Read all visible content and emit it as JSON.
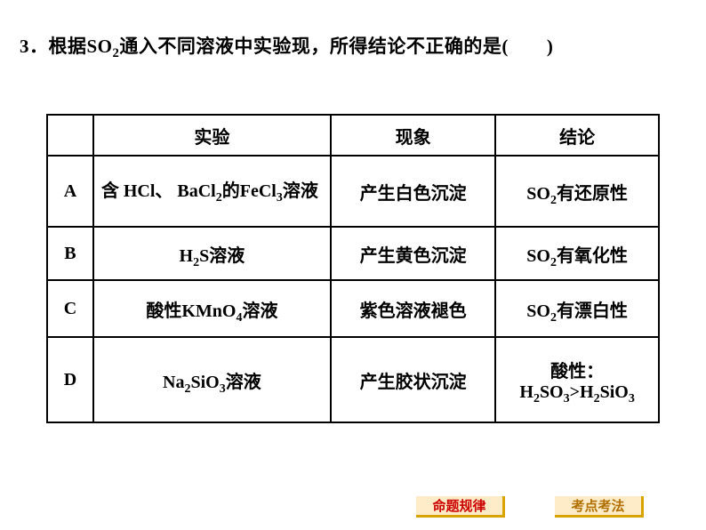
{
  "question": "3．根据SO₂通入不同溶液中实验现象，所得结论不正确的是(　　)",
  "table": {
    "header": {
      "label": "",
      "experiment": "实验",
      "phenomenon": "现象",
      "conclusion": "结论"
    },
    "rows": [
      {
        "label": "A",
        "experiment_html": "含 HCl、 BaCl<sub>2</sub>的FeCl<sub>3</sub>溶液",
        "phenomenon": "产生白色沉淀",
        "conclusion_html": "SO<sub>2</sub>有还原性",
        "height_class": "rA",
        "exp_align": "left-align"
      },
      {
        "label": "B",
        "experiment_html": "H<sub>2</sub>S溶液",
        "phenomenon": "产生黄色沉淀",
        "conclusion_html": "SO<sub>2</sub>有氧化性",
        "height_class": "rB",
        "exp_align": ""
      },
      {
        "label": "C",
        "experiment_html": "酸性KMnO<sub>4</sub>溶液",
        "phenomenon": "紫色溶液褪色",
        "conclusion_html": "SO<sub>2</sub>有漂白性",
        "height_class": "rC",
        "exp_align": ""
      },
      {
        "label": "D",
        "experiment_html": "Na<sub>2</sub>SiO<sub>3</sub>溶液",
        "phenomenon": "产生胶状沉淀",
        "conclusion_html": "酸性：<br>H<sub>2</sub>SO<sub>3</sub>&gt;H<sub>2</sub>SiO<sub>3</sub>",
        "height_class": "rD",
        "exp_align": ""
      }
    ]
  },
  "footer": {
    "btn1": "命题规律",
    "btn2": "考点考法"
  },
  "colors": {
    "text": "#000000",
    "bg": "#ffffff",
    "btn_bg": "#fdecc7",
    "btn_shadow": "#d9a300",
    "btn_red_text": "#cc0000",
    "btn_yellow_text": "#b06f00"
  }
}
